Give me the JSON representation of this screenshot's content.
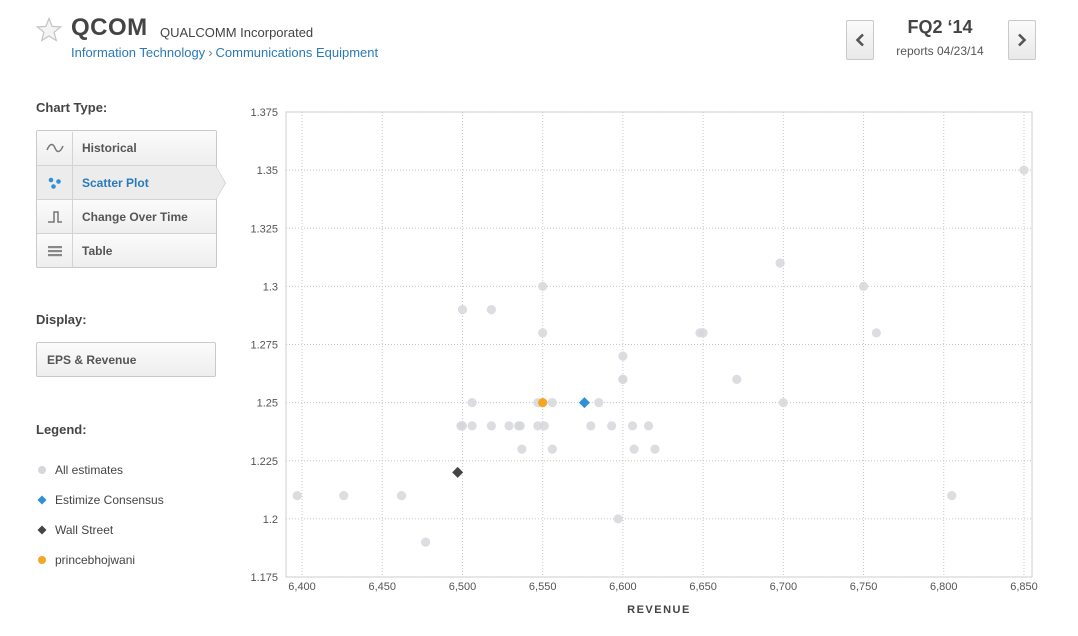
{
  "header": {
    "ticker": "QCOM",
    "company": "QUALCOMM Incorporated",
    "sector": "Information Technology",
    "separator": "›",
    "industry": "Communications Equipment",
    "period": "FQ2 ‘14",
    "reports": "reports 04/23/14",
    "icons": {
      "favorite": "star-icon",
      "prev": "chevron-left-icon",
      "next": "chevron-right-icon"
    }
  },
  "sidebar": {
    "chart_type_label": "Chart Type:",
    "chart_types": [
      {
        "label": "Historical",
        "icon": "wave-icon",
        "active": false
      },
      {
        "label": "Scatter Plot",
        "icon": "scatter-icon",
        "active": true
      },
      {
        "label": "Change Over Time",
        "icon": "step-icon",
        "active": false
      },
      {
        "label": "Table",
        "icon": "table-icon",
        "active": false
      }
    ],
    "display_label": "Display:",
    "display_value": "EPS & Revenue",
    "legend_label": "Legend:",
    "legend": [
      {
        "label": "All estimates",
        "shape": "circle",
        "color": "#d5d7da"
      },
      {
        "label": "Estimize Consensus",
        "shape": "diamond",
        "color": "#2f8fd8"
      },
      {
        "label": "Wall Street",
        "shape": "diamond",
        "color": "#444444"
      },
      {
        "label": "princebhojwani",
        "shape": "circle",
        "color": "#f5a623"
      }
    ]
  },
  "chart_data": {
    "type": "scatter",
    "xlabel": "REVENUE",
    "ylabel": "",
    "xlim": [
      6390,
      6855
    ],
    "ylim": [
      1.175,
      1.375
    ],
    "x_ticks": [
      6400,
      6450,
      6500,
      6550,
      6600,
      6650,
      6700,
      6750,
      6800,
      6850
    ],
    "x_tick_labels": [
      "6,400",
      "6,450",
      "6,500",
      "6,550",
      "6,600",
      "6,650",
      "6,700",
      "6,750",
      "6,800",
      "6,850"
    ],
    "y_ticks": [
      1.175,
      1.2,
      1.225,
      1.25,
      1.275,
      1.3,
      1.325,
      1.35,
      1.375
    ],
    "y_tick_labels": [
      "1.175",
      "1.2",
      "1.225",
      "1.25",
      "1.275",
      "1.3",
      "1.325",
      "1.35",
      "1.375"
    ],
    "grid": true,
    "series": [
      {
        "name": "All estimates",
        "marker": "circle",
        "color": "#d5d7da",
        "points": [
          [
            6397,
            1.21
          ],
          [
            6426,
            1.21
          ],
          [
            6462,
            1.21
          ],
          [
            6477,
            1.19
          ],
          [
            6499,
            1.24
          ],
          [
            6500,
            1.29
          ],
          [
            6500,
            1.24
          ],
          [
            6506,
            1.25
          ],
          [
            6506,
            1.24
          ],
          [
            6518,
            1.29
          ],
          [
            6518,
            1.24
          ],
          [
            6529,
            1.24
          ],
          [
            6535,
            1.24
          ],
          [
            6536,
            1.24
          ],
          [
            6537,
            1.23
          ],
          [
            6547,
            1.25
          ],
          [
            6547,
            1.24
          ],
          [
            6550,
            1.3
          ],
          [
            6550,
            1.28
          ],
          [
            6551,
            1.24
          ],
          [
            6556,
            1.25
          ],
          [
            6556,
            1.23
          ],
          [
            6580,
            1.24
          ],
          [
            6585,
            1.25
          ],
          [
            6593,
            1.24
          ],
          [
            6597,
            1.2
          ],
          [
            6600,
            1.27
          ],
          [
            6600,
            1.26
          ],
          [
            6600,
            1.26
          ],
          [
            6606,
            1.24
          ],
          [
            6607,
            1.23
          ],
          [
            6616,
            1.24
          ],
          [
            6620,
            1.23
          ],
          [
            6648,
            1.28
          ],
          [
            6650,
            1.28
          ],
          [
            6671,
            1.26
          ],
          [
            6698,
            1.31
          ],
          [
            6700,
            1.25
          ],
          [
            6750,
            1.3
          ],
          [
            6758,
            1.28
          ],
          [
            6805,
            1.21
          ],
          [
            6850,
            1.35
          ]
        ]
      },
      {
        "name": "Estimize Consensus",
        "marker": "diamond",
        "color": "#2f8fd8",
        "points": [
          [
            6576,
            1.25
          ]
        ]
      },
      {
        "name": "Wall Street",
        "marker": "diamond",
        "color": "#444444",
        "points": [
          [
            6497,
            1.22
          ]
        ]
      },
      {
        "name": "princebhojwani",
        "marker": "circle",
        "color": "#f5a623",
        "points": [
          [
            6550,
            1.25
          ]
        ]
      }
    ]
  }
}
